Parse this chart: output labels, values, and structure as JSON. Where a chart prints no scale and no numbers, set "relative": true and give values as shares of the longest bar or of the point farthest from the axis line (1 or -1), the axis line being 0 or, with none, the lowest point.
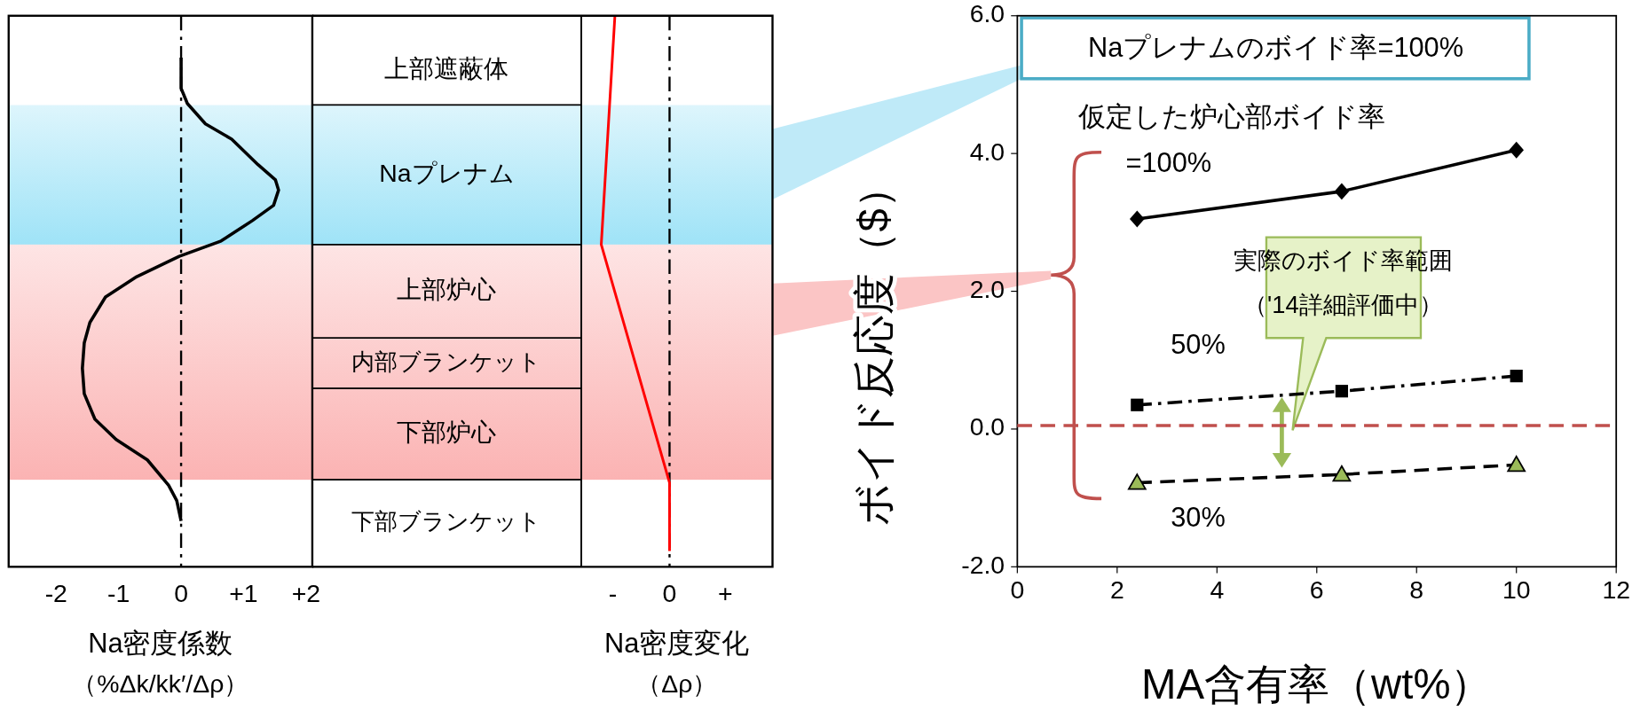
{
  "chart_data": [
    {
      "type": "line",
      "relative": true,
      "xlabel": "Na密度係数",
      "annotations": [
        "（%Δk/kk′/Δρ）"
      ],
      "xlim": [
        -2.76,
        2.1
      ],
      "xticks": [
        {
          "value": -2,
          "label": "-2"
        },
        {
          "value": -1,
          "label": "-1"
        },
        0,
        {
          "value": 1,
          "label": "+1"
        },
        {
          "value": 2,
          "label": "+2"
        }
      ],
      "series": [
        {
          "color": "#000000",
          "x": [
            0,
            0,
            0.1,
            0.39,
            0.81,
            1.23,
            1.51,
            1.56,
            1.48,
            1.14,
            0.64,
            -0.03,
            -0.71,
            -1.21,
            -1.46,
            -1.55,
            -1.58,
            -1.55,
            -1.38,
            -1.04,
            -0.54,
            -0.2,
            -0.07,
            0
          ],
          "values": [
            1,
            0.94,
            0.91,
            0.87,
            0.84,
            0.79,
            0.76,
            0.74,
            0.71,
            0.68,
            0.64,
            0.61,
            0.57,
            0.53,
            0.48,
            0.44,
            0.39,
            0.34,
            0.29,
            0.25,
            0.21,
            0.16,
            0.13,
            0.09
          ]
        }
      ],
      "ref_lines": [
        {
          "axis": "x",
          "value": 0,
          "line_style": "dashdot",
          "color": "#000000"
        }
      ],
      "bands": [
        {
          "axis": "y",
          "from": 0.633,
          "to": 0.907,
          "color": "#9fe3f7"
        },
        {
          "axis": "y",
          "from": 0.171,
          "to": 0.633,
          "color": "#fbb3b3"
        }
      ]
    },
    {
      "type": "other",
      "annotations": [
        "上部遮蔽体",
        "Naプレナム",
        "上部炉心",
        "内部ブランケット",
        "下部炉心",
        "下部ブランケット"
      ]
    },
    {
      "type": "other",
      "xlabel": "Na密度変化",
      "annotations": [
        "-",
        "0",
        "+",
        "（Δρ）"
      ]
    },
    {
      "type": "line",
      "xlabel": "MA含有率（wt%）",
      "ylabel": "ボイド反応度（$）",
      "xlim": [
        0,
        12
      ],
      "ylim": [
        -2,
        6
      ],
      "xticks": [
        0,
        2,
        4,
        6,
        8,
        10,
        12
      ],
      "yticks": [
        {
          "value": -2,
          "label": "-2.0"
        },
        {
          "value": 0,
          "label": "0.0"
        },
        {
          "value": 2,
          "label": "2.0"
        },
        {
          "value": 4,
          "label": "4.0"
        },
        {
          "value": 6,
          "label": "6.0"
        }
      ],
      "x": [
        2.4,
        6.5,
        10
      ],
      "series": [
        {
          "name": "=100%",
          "color": "#000000",
          "values": [
            3.05,
            3.45,
            4.05
          ],
          "marker": "diamond",
          "line_style": "solid"
        },
        {
          "name": "50%",
          "color": "#000000",
          "values": [
            0.35,
            0.55,
            0.77
          ],
          "marker": "square",
          "line_style": "dashdot"
        },
        {
          "name": "30%",
          "color": "#000000",
          "values": [
            -0.78,
            -0.66,
            -0.52
          ],
          "marker": "triangle",
          "line_style": "dashed"
        }
      ],
      "ref_lines": [
        {
          "axis": "y",
          "value": 0.05,
          "line_style": "dashed",
          "color": "#c0504d"
        }
      ],
      "annotations": [
        "Naプレナムのボイド率=100%",
        "仮定した炉心部ボイド率",
        "実際のボイド率範囲",
        "（'14詳細評価中）"
      ]
    }
  ]
}
